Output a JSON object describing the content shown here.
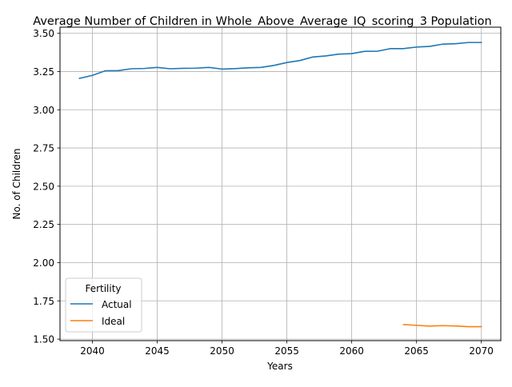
{
  "chart_data": {
    "type": "line",
    "title": "Average Number of Children in Whole_Above_Average_IQ_scoring_3 Population",
    "xlabel": "Years",
    "ylabel": "No. of Children",
    "xlim": [
      2037.5,
      2071.5
    ],
    "ylim": [
      1.49,
      3.54
    ],
    "x_ticks": [
      2040,
      2045,
      2050,
      2055,
      2060,
      2065,
      2070
    ],
    "y_ticks": [
      1.5,
      1.75,
      2.0,
      2.25,
      2.5,
      2.75,
      3.0,
      3.25,
      3.5
    ],
    "x_tick_labels": [
      "2040",
      "2045",
      "2050",
      "2055",
      "2060",
      "2065",
      "2070"
    ],
    "y_tick_labels": [
      "1.50",
      "1.75",
      "2.00",
      "2.25",
      "2.50",
      "2.75",
      "3.00",
      "3.25",
      "3.50"
    ],
    "grid": true,
    "legend": {
      "title": "Fertility",
      "placement": "lower-left"
    },
    "series": [
      {
        "name": "Actual",
        "color": "#1f77b4",
        "x": [
          2039,
          2040,
          2041,
          2042,
          2043,
          2044,
          2045,
          2046,
          2047,
          2048,
          2049,
          2050,
          2051,
          2052,
          2053,
          2054,
          2055,
          2056,
          2057,
          2058,
          2059,
          2060,
          2061,
          2062,
          2063,
          2064,
          2065,
          2066,
          2067,
          2068,
          2069,
          2070
        ],
        "y": [
          3.205,
          3.225,
          3.255,
          3.256,
          3.268,
          3.27,
          3.277,
          3.268,
          3.271,
          3.272,
          3.277,
          3.266,
          3.269,
          3.274,
          3.277,
          3.29,
          3.309,
          3.322,
          3.345,
          3.352,
          3.364,
          3.367,
          3.382,
          3.383,
          3.4,
          3.4,
          3.41,
          3.414,
          3.429,
          3.432,
          3.44,
          3.44
        ]
      },
      {
        "name": "Ideal",
        "color": "#ff7f0e",
        "x": [
          2064,
          2065,
          2066,
          2067,
          2068,
          2069,
          2070
        ],
        "y": [
          1.595,
          1.59,
          1.585,
          1.588,
          1.586,
          1.581,
          1.581
        ]
      }
    ]
  }
}
